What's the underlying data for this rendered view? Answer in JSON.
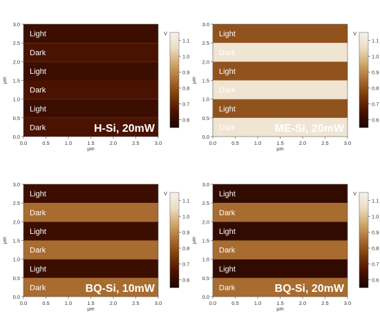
{
  "chart_data": [
    {
      "type": "heatmap",
      "sample_label": "H-Si, 20mW",
      "xlabel": "µm",
      "ylabel": "µm",
      "xlim": [
        0,
        3.0
      ],
      "ylim": [
        0,
        3.0
      ],
      "x_ticks": [
        "0.0",
        "0.5",
        "1.0",
        "1.5",
        "2.0",
        "2.5",
        "3.0"
      ],
      "y_ticks": [
        "0.0",
        "0.5",
        "1.0",
        "1.5",
        "2.0",
        "2.5",
        "3.0"
      ],
      "colorbar": {
        "label": "V",
        "ticks": [
          "0.6",
          "0.7",
          "0.8",
          "0.9",
          "1.0",
          "1.1"
        ],
        "range": [
          0.55,
          1.15
        ]
      },
      "bands": [
        {
          "label": "Dark",
          "y_range": [
            0,
            0.5
          ],
          "value": 0.65
        },
        {
          "label": "Light",
          "y_range": [
            0.5,
            1.0
          ],
          "value": 0.62
        },
        {
          "label": "Dark",
          "y_range": [
            1.0,
            1.5
          ],
          "value": 0.65
        },
        {
          "label": "Light",
          "y_range": [
            1.5,
            2.0
          ],
          "value": 0.62
        },
        {
          "label": "Dark",
          "y_range": [
            2.0,
            2.5
          ],
          "value": 0.65
        },
        {
          "label": "Light",
          "y_range": [
            2.5,
            3.0
          ],
          "value": 0.62
        }
      ]
    },
    {
      "type": "heatmap",
      "sample_label": "ME-Si, 20mW",
      "xlabel": "µm",
      "ylabel": "µm",
      "xlim": [
        0,
        3.0
      ],
      "ylim": [
        0,
        3.0
      ],
      "x_ticks": [
        "0.0",
        "0.5",
        "1.0",
        "1.5",
        "2.0",
        "2.5",
        "3.0"
      ],
      "y_ticks": [
        "0.0",
        "0.5",
        "1.0",
        "1.5",
        "2.0",
        "2.5",
        "3.0"
      ],
      "colorbar": {
        "label": "V",
        "ticks": [
          "0.6",
          "0.7",
          "0.8",
          "0.9",
          "1.0",
          "1.1"
        ],
        "range": [
          0.55,
          1.15
        ]
      },
      "bands": [
        {
          "label": "Dark",
          "y_range": [
            0,
            0.5
          ],
          "value": 1.09
        },
        {
          "label": "Light",
          "y_range": [
            0.5,
            1.0
          ],
          "value": 0.8
        },
        {
          "label": "Dark",
          "y_range": [
            1.0,
            1.5
          ],
          "value": 1.09
        },
        {
          "label": "Light",
          "y_range": [
            1.5,
            2.0
          ],
          "value": 0.8
        },
        {
          "label": "Dark",
          "y_range": [
            2.0,
            2.5
          ],
          "value": 1.09
        },
        {
          "label": "Light",
          "y_range": [
            2.5,
            3.0
          ],
          "value": 0.8
        }
      ]
    },
    {
      "type": "heatmap",
      "sample_label": "BQ-Si, 10mW",
      "xlabel": "µm",
      "ylabel": "µm",
      "xlim": [
        0,
        3.0
      ],
      "ylim": [
        0,
        3.0
      ],
      "x_ticks": [
        "0.0",
        "0.5",
        "1.0",
        "1.5",
        "2.0",
        "2.5",
        "3.0"
      ],
      "y_ticks": [
        "0.0",
        "0.5",
        "1.0",
        "1.5",
        "2.0",
        "2.5",
        "3.0"
      ],
      "colorbar": {
        "label": "V",
        "ticks": [
          "0.6",
          "0.7",
          "0.8",
          "0.9",
          "1.0",
          "1.1"
        ],
        "range": [
          0.55,
          1.15
        ]
      },
      "bands": [
        {
          "label": "Dark",
          "y_range": [
            0,
            0.5
          ],
          "value": 0.85
        },
        {
          "label": "Light",
          "y_range": [
            0.5,
            1.0
          ],
          "value": 0.62
        },
        {
          "label": "Dark",
          "y_range": [
            1.0,
            1.5
          ],
          "value": 0.85
        },
        {
          "label": "Light",
          "y_range": [
            1.5,
            2.0
          ],
          "value": 0.62
        },
        {
          "label": "Dark",
          "y_range": [
            2.0,
            2.5
          ],
          "value": 0.85
        },
        {
          "label": "Light",
          "y_range": [
            2.5,
            3.0
          ],
          "value": 0.62
        }
      ]
    },
    {
      "type": "heatmap",
      "sample_label": "BQ-Si, 20mW",
      "xlabel": "µm",
      "ylabel": "µm",
      "xlim": [
        0,
        3.0
      ],
      "ylim": [
        0,
        3.0
      ],
      "x_ticks": [
        "0.0",
        "0.5",
        "1.0",
        "1.5",
        "2.0",
        "2.5",
        "3.0"
      ],
      "y_ticks": [
        "0.0",
        "0.5",
        "1.0",
        "1.5",
        "2.0",
        "2.5",
        "3.0"
      ],
      "colorbar": {
        "label": "V",
        "ticks": [
          "0.6",
          "0.7",
          "0.8",
          "0.9",
          "1.0",
          "1.1"
        ],
        "range": [
          0.55,
          1.15
        ]
      },
      "bands": [
        {
          "label": "Dark",
          "y_range": [
            0,
            0.5
          ],
          "value": 0.85
        },
        {
          "label": "Light",
          "y_range": [
            0.5,
            1.0
          ],
          "value": 0.6
        },
        {
          "label": "Dark",
          "y_range": [
            1.0,
            1.5
          ],
          "value": 0.85
        },
        {
          "label": "Light",
          "y_range": [
            1.5,
            2.0
          ],
          "value": 0.6
        },
        {
          "label": "Dark",
          "y_range": [
            2.0,
            2.5
          ],
          "value": 0.85
        },
        {
          "label": "Light",
          "y_range": [
            2.5,
            3.0
          ],
          "value": 0.6
        }
      ]
    }
  ],
  "colormap": [
    "#1a0500",
    "#4a1200",
    "#7a3a0a",
    "#a86c30",
    "#cfa66a",
    "#ebdcc2",
    "#f7f2ec"
  ]
}
